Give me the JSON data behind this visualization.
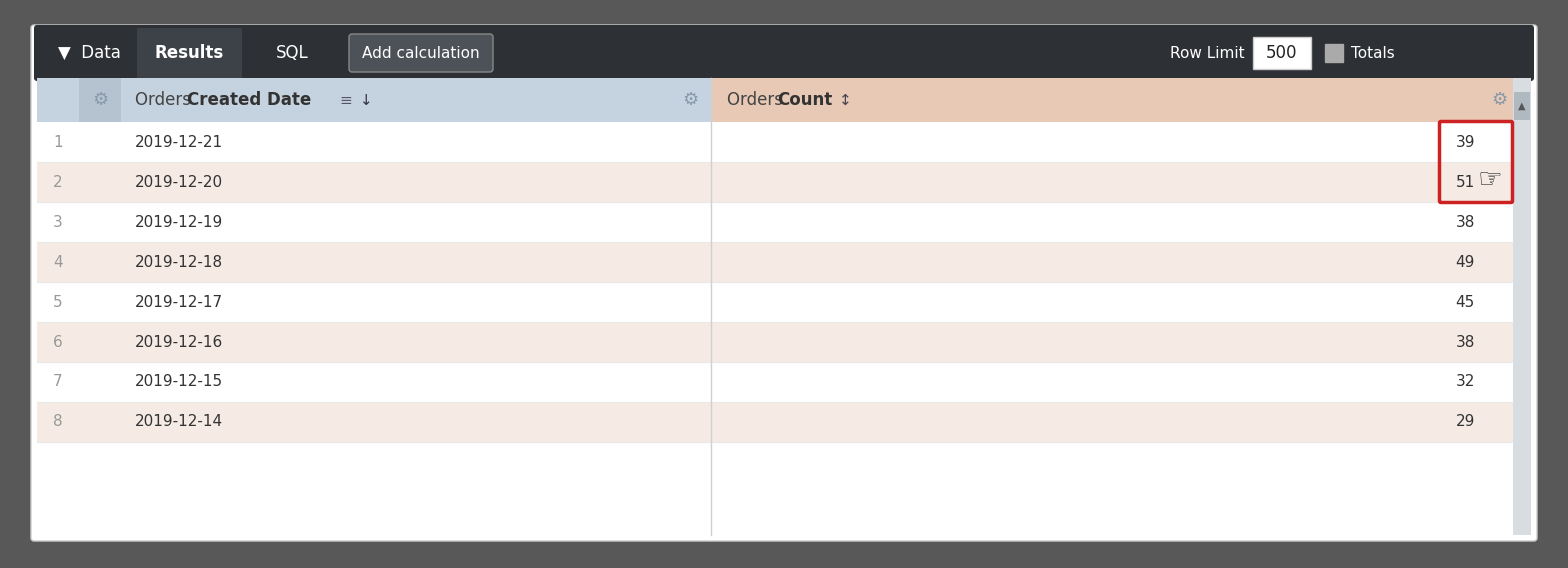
{
  "background_color": "#585858",
  "panel_bg": "#ffffff",
  "toolbar_bg": "#2d3035",
  "toolbar_results_bg": "#3d4148",
  "toolbar_add_calc_bg": "#4d5158",
  "toolbar_text_color": "#ffffff",
  "row_limit_label": "Row Limit",
  "row_limit_value": "500",
  "totals_label": "Totals",
  "header_date_bg": "#c5d3e0",
  "header_date_gear_bg": "#b5c3d0",
  "header_count_bg": "#e8c9b5",
  "row_odd_bg": "#ffffff",
  "row_even_bg": "#f5ebe4",
  "row_text_color": "#333333",
  "row_num_color": "#999999",
  "highlight_border_color": "#cc2222",
  "scrollbar_bg": "#d8dde2",
  "scrollbar_thumb": "#b0b8c0",
  "gear_color": "#8899aa",
  "rows": [
    {
      "num": 1,
      "date": "2019-12-21",
      "count": "39"
    },
    {
      "num": 2,
      "date": "2019-12-20",
      "count": "51"
    },
    {
      "num": 3,
      "date": "2019-12-19",
      "count": "38"
    },
    {
      "num": 4,
      "date": "2019-12-18",
      "count": "49"
    },
    {
      "num": 5,
      "date": "2019-12-17",
      "count": "45"
    },
    {
      "num": 6,
      "date": "2019-12-16",
      "count": "38"
    },
    {
      "num": 7,
      "date": "2019-12-15",
      "count": "32"
    },
    {
      "num": 8,
      "date": "2019-12-14",
      "count": "29"
    }
  ]
}
